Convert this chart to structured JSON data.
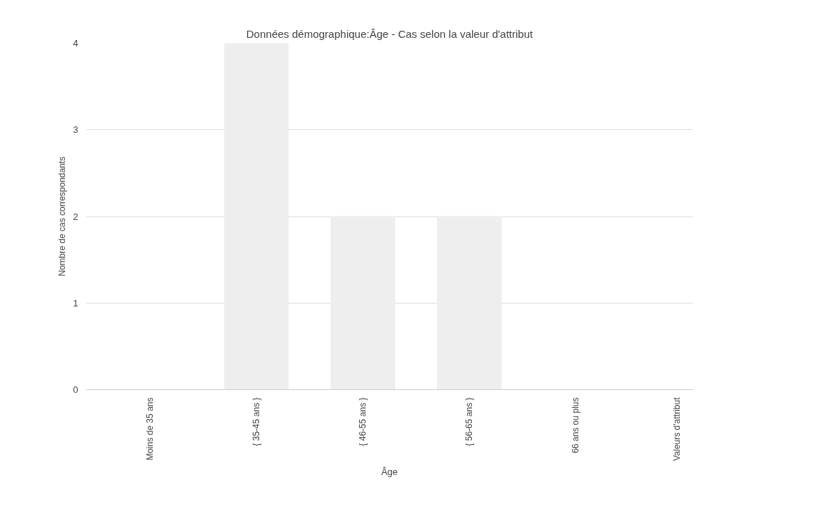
{
  "chart_data": {
    "type": "bar",
    "title": "Données démographique:Âge - Cas selon la valeur d'attribut",
    "xlabel": "Âge",
    "ylabel": "Nombre de cas correspondants",
    "categories": [
      "Moins de 35 ans",
      "{ 35-45 ans }",
      "{ 46-55 ans }",
      "{ 56-65 ans }",
      "66 ans ou plus"
    ],
    "values": [
      0,
      4,
      2,
      2,
      0
    ],
    "color": "#eeeeee",
    "ylim": [
      0,
      4
    ],
    "yticks": [
      0,
      1,
      2,
      3,
      4
    ],
    "grid": "y",
    "annotations": [
      "Valeurs d'attribut"
    ]
  }
}
